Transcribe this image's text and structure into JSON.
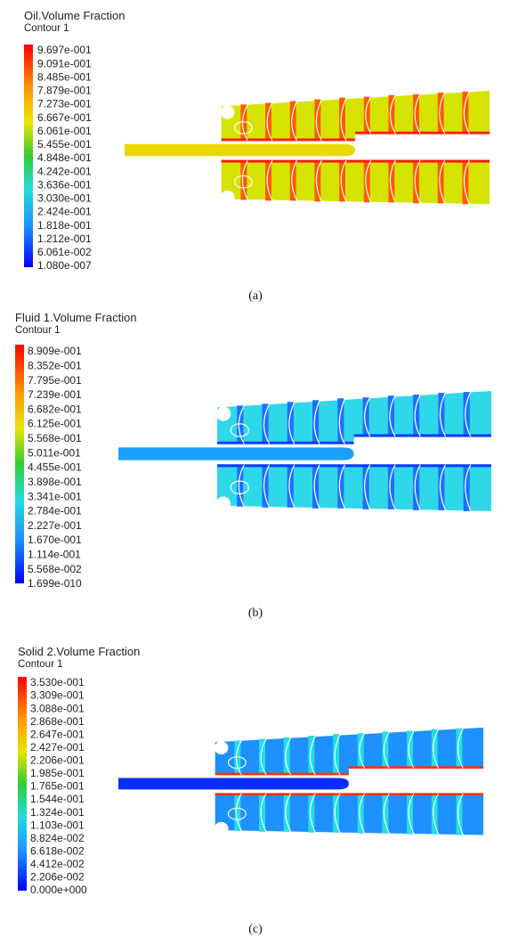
{
  "panels": [
    {
      "title": "Oil.Volume Fraction",
      "subtitle": "Contour 1",
      "caption": "(a)",
      "legend": [
        "9.697e-001",
        "9.091e-001",
        "8.485e-001",
        "7.879e-001",
        "7.273e-001",
        "6.667e-001",
        "6.061e-001",
        "5.455e-001",
        "4.848e-001",
        "4.242e-001",
        "3.636e-001",
        "3.030e-001",
        "2.424e-001",
        "1.818e-001",
        "1.212e-001",
        "6.061e-002",
        "1.080e-007"
      ]
    },
    {
      "title": "Fluid 1.Volume Fraction",
      "subtitle": "Contour 1",
      "caption": "(b)",
      "legend": [
        "8.909e-001",
        "8.352e-001",
        "7.795e-001",
        "7.239e-001",
        "6.682e-001",
        "6.125e-001",
        "5.568e-001",
        "5.011e-001",
        "4.455e-001",
        "3.898e-001",
        "3.341e-001",
        "2.784e-001",
        "2.227e-001",
        "1.670e-001",
        "1.114e-001",
        "5.568e-002",
        "1.699e-010"
      ]
    },
    {
      "title": "Solid 2.Volume Fraction",
      "subtitle": "Contour 1",
      "caption": "(c)",
      "legend": [
        "3.530e-001",
        "3.309e-001",
        "3.088e-001",
        "2.868e-001",
        "2.647e-001",
        "2.427e-001",
        "2.206e-001",
        "1.985e-001",
        "1.765e-001",
        "1.544e-001",
        "1.324e-001",
        "1.103e-001",
        "8.824e-002",
        "6.618e-002",
        "4.412e-002",
        "2.206e-002",
        "0.000e+000"
      ]
    }
  ]
}
